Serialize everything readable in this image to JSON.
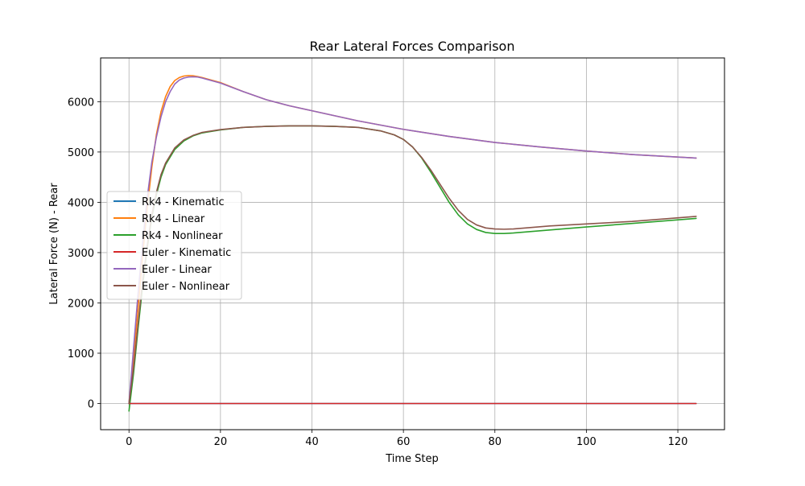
{
  "chart_data": {
    "type": "line",
    "title": "Rear Lateral Forces Comparison",
    "xlabel": "Time Step",
    "ylabel": "Lateral Force (N) - Rear",
    "xlim": [
      -6.2,
      130.2
    ],
    "ylim": [
      -520,
      6870
    ],
    "xticks": [
      0,
      20,
      40,
      60,
      80,
      100,
      120
    ],
    "yticks": [
      0,
      1000,
      2000,
      3000,
      4000,
      5000,
      6000
    ],
    "grid": true,
    "legend_position": "center-left",
    "series": [
      {
        "name": "Rk4 - Kinematic",
        "color": "#1f77b4",
        "x": [
          0,
          124
        ],
        "y": [
          0,
          0
        ]
      },
      {
        "name": "Rk4 - Linear",
        "color": "#ff7f0e",
        "x": [
          0,
          1,
          2,
          3,
          4,
          5,
          6,
          7,
          8,
          9,
          10,
          11,
          12,
          13,
          14,
          15,
          16,
          18,
          20,
          25,
          30,
          35,
          40,
          50,
          60,
          70,
          80,
          90,
          100,
          110,
          124
        ],
        "y": [
          0,
          900,
          1900,
          2950,
          3900,
          4700,
          5350,
          5800,
          6100,
          6300,
          6420,
          6480,
          6510,
          6520,
          6515,
          6500,
          6480,
          6430,
          6380,
          6200,
          6040,
          5920,
          5820,
          5620,
          5450,
          5310,
          5190,
          5100,
          5020,
          4950,
          4880
        ]
      },
      {
        "name": "Rk4 - Nonlinear",
        "color": "#2ca02c",
        "x": [
          0,
          1,
          2,
          3,
          4,
          5,
          6,
          7,
          8,
          10,
          12,
          14,
          16,
          20,
          25,
          30,
          35,
          40,
          45,
          50,
          55,
          58,
          60,
          62,
          64,
          66,
          68,
          70,
          72,
          74,
          76,
          78,
          80,
          82,
          84,
          88,
          92,
          100,
          110,
          124
        ],
        "y": [
          -150,
          600,
          1500,
          2350,
          3100,
          3700,
          4150,
          4500,
          4750,
          5050,
          5220,
          5320,
          5380,
          5440,
          5490,
          5510,
          5520,
          5520,
          5510,
          5490,
          5420,
          5340,
          5250,
          5100,
          4880,
          4600,
          4300,
          4000,
          3750,
          3570,
          3460,
          3400,
          3380,
          3380,
          3390,
          3420,
          3450,
          3510,
          3580,
          3680
        ]
      },
      {
        "name": "Euler - Kinematic",
        "color": "#d62728",
        "x": [
          0,
          124
        ],
        "y": [
          0,
          0
        ]
      },
      {
        "name": "Euler - Linear",
        "color": "#9467bd",
        "x": [
          0,
          1,
          2,
          3,
          4,
          5,
          6,
          7,
          8,
          9,
          10,
          11,
          12,
          13,
          14,
          15,
          16,
          18,
          20,
          25,
          30,
          35,
          40,
          50,
          60,
          70,
          80,
          90,
          100,
          110,
          124
        ],
        "y": [
          0,
          1100,
          2200,
          3200,
          4100,
          4800,
          5300,
          5700,
          6000,
          6200,
          6350,
          6430,
          6470,
          6490,
          6495,
          6490,
          6470,
          6420,
          6370,
          6200,
          6040,
          5920,
          5820,
          5620,
          5450,
          5310,
          5190,
          5100,
          5020,
          4950,
          4880
        ]
      },
      {
        "name": "Euler - Nonlinear",
        "color": "#8c564b",
        "x": [
          0,
          1,
          2,
          3,
          4,
          5,
          6,
          7,
          8,
          10,
          12,
          14,
          16,
          20,
          25,
          30,
          35,
          40,
          45,
          50,
          55,
          58,
          60,
          62,
          64,
          66,
          68,
          70,
          72,
          74,
          76,
          78,
          80,
          82,
          84,
          88,
          92,
          100,
          110,
          124
        ],
        "y": [
          0,
          700,
          1600,
          2450,
          3150,
          3750,
          4200,
          4550,
          4780,
          5080,
          5240,
          5330,
          5390,
          5445,
          5490,
          5510,
          5520,
          5520,
          5510,
          5490,
          5420,
          5340,
          5250,
          5100,
          4890,
          4640,
          4360,
          4080,
          3840,
          3660,
          3550,
          3490,
          3470,
          3465,
          3470,
          3500,
          3530,
          3570,
          3620,
          3720
        ]
      }
    ]
  }
}
